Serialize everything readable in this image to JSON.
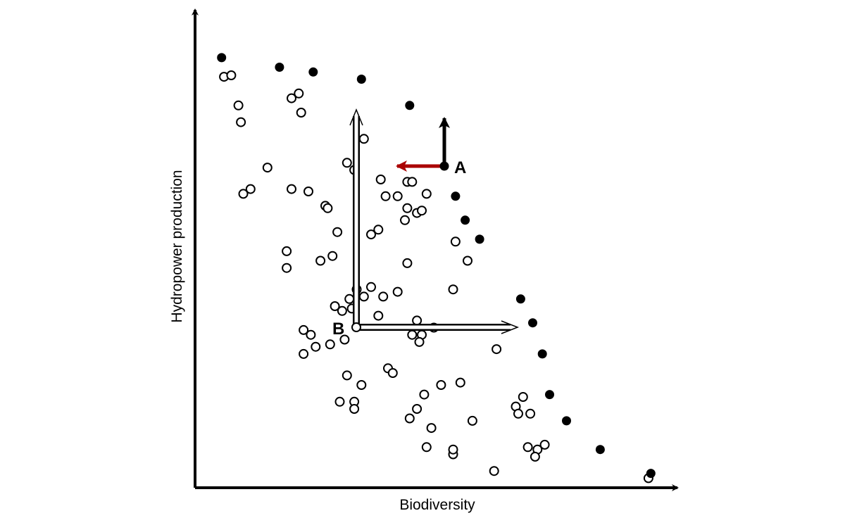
{
  "chart_data": {
    "type": "scatter",
    "xlabel": "Biodiversity",
    "ylabel": "Hydropower production",
    "xlim": [
      0,
      100
    ],
    "ylim": [
      0,
      100
    ],
    "grid": false,
    "ticks": false,
    "colors": {
      "axis": "#000000",
      "pareto_point": "#000000",
      "dominated_point": "#ffffff",
      "arrow_a_up": "#000000",
      "arrow_a_left": "#aa0000",
      "arrow_b": "#ffffff"
    },
    "series": [
      {
        "marker": "filled",
        "points": [
          [
            5.5,
            90.0
          ],
          [
            17.5,
            88.0
          ],
          [
            24.5,
            87.0
          ],
          [
            34.5,
            85.5
          ],
          [
            44.5,
            80.0
          ],
          [
            54.0,
            61.0
          ],
          [
            56.0,
            56.0
          ],
          [
            59.0,
            52.0
          ],
          [
            67.5,
            39.5
          ],
          [
            70.0,
            34.5
          ],
          [
            72.0,
            28.0
          ],
          [
            73.5,
            19.5
          ],
          [
            77.0,
            14.0
          ],
          [
            84.0,
            8.0
          ],
          [
            94.5,
            3.0
          ]
        ]
      },
      {
        "marker": "open",
        "points": [
          [
            6.0,
            86.0
          ],
          [
            7.5,
            86.3
          ],
          [
            9.0,
            80.0
          ],
          [
            9.5,
            76.5
          ],
          [
            10.0,
            61.5
          ],
          [
            11.5,
            62.5
          ],
          [
            15.0,
            67.0
          ],
          [
            20.0,
            81.5
          ],
          [
            21.5,
            82.5
          ],
          [
            22.0,
            78.5
          ],
          [
            20.0,
            62.5
          ],
          [
            23.5,
            62.0
          ],
          [
            27.0,
            59.0
          ],
          [
            27.5,
            58.5
          ],
          [
            29.5,
            53.5
          ],
          [
            28.5,
            48.5
          ],
          [
            26.0,
            47.5
          ],
          [
            19.0,
            49.5
          ],
          [
            19.0,
            46.0
          ],
          [
            31.5,
            68.0
          ],
          [
            33.0,
            66.5
          ],
          [
            35.0,
            73.0
          ],
          [
            38.5,
            64.5
          ],
          [
            39.5,
            61.0
          ],
          [
            42.0,
            61.0
          ],
          [
            44.0,
            64.0
          ],
          [
            45.0,
            64.0
          ],
          [
            48.0,
            61.5
          ],
          [
            46.0,
            57.5
          ],
          [
            44.0,
            58.5
          ],
          [
            43.5,
            56.0
          ],
          [
            47.0,
            58.0
          ],
          [
            38.0,
            54.0
          ],
          [
            36.5,
            53.0
          ],
          [
            44.0,
            47.0
          ],
          [
            54.0,
            51.5
          ],
          [
            56.5,
            47.5
          ],
          [
            53.5,
            41.5
          ],
          [
            42.0,
            41.0
          ],
          [
            39.0,
            40.0
          ],
          [
            36.5,
            42.0
          ],
          [
            35.0,
            40.0
          ],
          [
            33.5,
            41.5
          ],
          [
            32.0,
            39.5
          ],
          [
            32.5,
            37.5
          ],
          [
            30.5,
            37.0
          ],
          [
            29.0,
            38.0
          ],
          [
            38.0,
            36.0
          ],
          [
            46.0,
            35.0
          ],
          [
            47.0,
            32.0
          ],
          [
            49.5,
            33.5
          ],
          [
            46.5,
            30.5
          ],
          [
            45.0,
            32.0
          ],
          [
            31.0,
            31.0
          ],
          [
            22.5,
            33.0
          ],
          [
            24.0,
            32.0
          ],
          [
            25.0,
            29.5
          ],
          [
            22.5,
            28.0
          ],
          [
            28.0,
            30.0
          ],
          [
            62.5,
            29.0
          ],
          [
            40.0,
            25.0
          ],
          [
            41.0,
            24.0
          ],
          [
            31.5,
            23.5
          ],
          [
            34.5,
            21.5
          ],
          [
            30.0,
            18.0
          ],
          [
            33.0,
            18.0
          ],
          [
            51.0,
            21.5
          ],
          [
            47.5,
            19.5
          ],
          [
            46.0,
            16.5
          ],
          [
            55.0,
            22.0
          ],
          [
            68.0,
            19.0
          ],
          [
            66.5,
            17.0
          ],
          [
            67.0,
            15.5
          ],
          [
            69.5,
            15.5
          ],
          [
            44.5,
            14.5
          ],
          [
            57.5,
            14.0
          ],
          [
            49.0,
            12.5
          ],
          [
            33.0,
            16.5
          ],
          [
            48.0,
            8.5
          ],
          [
            53.5,
            7.0
          ],
          [
            53.5,
            8.0
          ],
          [
            69.0,
            8.5
          ],
          [
            71.0,
            8.0
          ],
          [
            72.5,
            9.0
          ],
          [
            70.5,
            6.5
          ],
          [
            62.0,
            3.5
          ],
          [
            94.0,
            2.0
          ]
        ]
      }
    ],
    "annotations": [
      {
        "label": "A",
        "x": 54.0,
        "y": 71.0
      },
      {
        "label": "B",
        "x": 34.5,
        "y": 34.5
      }
    ]
  }
}
